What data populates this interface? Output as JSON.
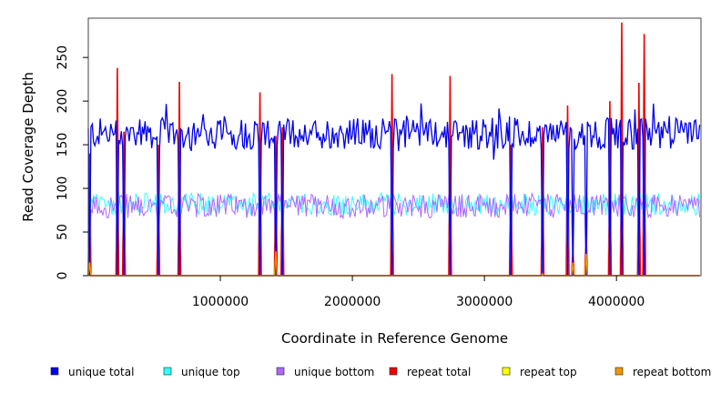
{
  "chart_data": {
    "type": "line",
    "title": "",
    "xlabel": "Coordinate in Reference Genome",
    "ylabel": "Read Coverage Depth",
    "xlim": [
      0,
      4640000
    ],
    "ylim": [
      0,
      295
    ],
    "x_ticks": [
      {
        "value": 1000000,
        "label": "1000000"
      },
      {
        "value": 2000000,
        "label": "2000000"
      },
      {
        "value": 3000000,
        "label": "3000000"
      },
      {
        "value": 4000000,
        "label": "4000000"
      }
    ],
    "y_ticks": [
      {
        "value": 0,
        "label": "0"
      },
      {
        "value": 50,
        "label": "50"
      },
      {
        "value": 100,
        "label": "100"
      },
      {
        "value": 150,
        "label": "150"
      },
      {
        "value": 200,
        "label": "200"
      },
      {
        "value": 250,
        "label": "250"
      }
    ],
    "bin_size": 10000,
    "typical_levels": {
      "unique_total": 163,
      "unique_top": 82,
      "unique_bottom": 80,
      "repeat_total": 0
    },
    "series": [
      {
        "key": "unique_total",
        "name": "unique total",
        "color": "#0000ee"
      },
      {
        "key": "unique_top",
        "name": "unique top",
        "color": "#33ffff"
      },
      {
        "key": "unique_bottom",
        "name": "unique bottom",
        "color": "#b266ff"
      },
      {
        "key": "repeat_total",
        "name": "repeat total",
        "color": "#ee0000"
      },
      {
        "key": "repeat_top",
        "name": "repeat top",
        "color": "#ffff00"
      },
      {
        "key": "repeat_bottom",
        "name": "repeat bottom",
        "color": "#ee9900"
      }
    ],
    "repeat_spikes": [
      {
        "x": 10000,
        "repeat_total": 140,
        "repeat_bottom": 15
      },
      {
        "x": 220000,
        "repeat_total": 238,
        "repeat_bottom": 0
      },
      {
        "x": 270000,
        "repeat_total": 165,
        "repeat_bottom": 0
      },
      {
        "x": 530000,
        "repeat_total": 150,
        "repeat_bottom": 0
      },
      {
        "x": 690000,
        "repeat_total": 222,
        "repeat_bottom": 0
      },
      {
        "x": 1300000,
        "repeat_total": 210,
        "repeat_bottom": 0
      },
      {
        "x": 1420000,
        "repeat_total": 160,
        "repeat_bottom": 28
      },
      {
        "x": 1470000,
        "repeat_total": 170,
        "repeat_bottom": 0
      },
      {
        "x": 2300000,
        "repeat_total": 231,
        "repeat_bottom": 0
      },
      {
        "x": 2740000,
        "repeat_total": 229,
        "repeat_bottom": 0
      },
      {
        "x": 3200000,
        "repeat_total": 150,
        "repeat_bottom": 0
      },
      {
        "x": 3440000,
        "repeat_total": 170,
        "repeat_bottom": 2
      },
      {
        "x": 3630000,
        "repeat_total": 195,
        "repeat_bottom": 0
      },
      {
        "x": 3670000,
        "repeat_total": 30,
        "repeat_bottom": 15
      },
      {
        "x": 3770000,
        "repeat_total": 50,
        "repeat_bottom": 25
      },
      {
        "x": 3950000,
        "repeat_total": 200,
        "repeat_bottom": 0
      },
      {
        "x": 4040000,
        "repeat_total": 290,
        "repeat_bottom": 0
      },
      {
        "x": 4170000,
        "repeat_total": 221,
        "repeat_bottom": 0
      },
      {
        "x": 4210000,
        "repeat_total": 277,
        "repeat_bottom": 0
      }
    ]
  }
}
